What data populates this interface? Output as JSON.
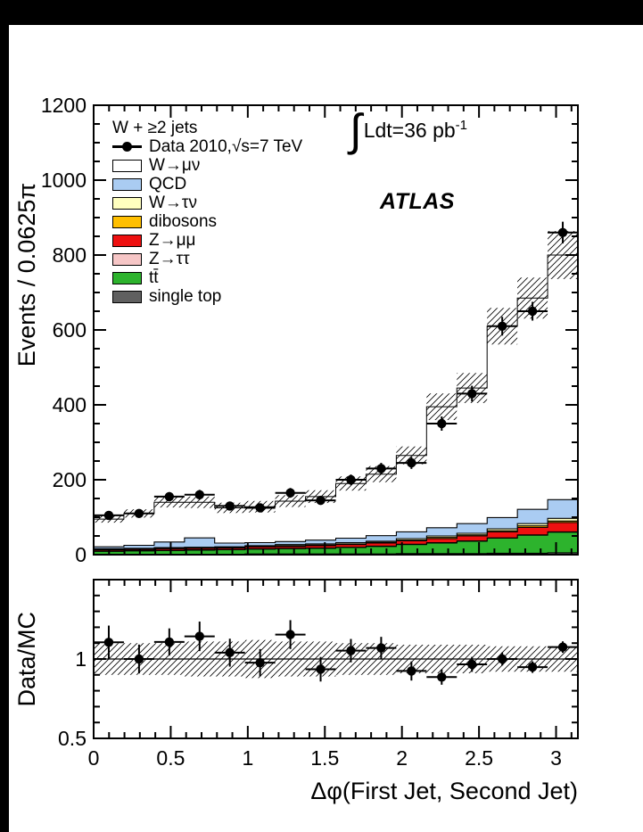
{
  "annotations": {
    "lumi_integral": "∫",
    "lumi_text": "Ldt=36 pb",
    "lumi_exponent": "-1",
    "experiment": "ATLAS"
  },
  "chart_data": {
    "type": "bar",
    "subtype": "stacked-histogram-with-data-points-and-ratio-panel",
    "title": "",
    "xlabel": "Δφ(First Jet, Second Jet)",
    "ylabel_main": "Events / 0.0625π",
    "ylabel_ratio": "Data/MC",
    "xlim": [
      0,
      3.14159265
    ],
    "ylim_main": [
      0,
      1200
    ],
    "ylim_ratio": [
      0.5,
      1.5
    ],
    "n_bins": 16,
    "x_major_ticks": [
      0,
      0.5,
      1,
      1.5,
      2,
      2.5,
      3
    ],
    "x_major_labels": [
      "0",
      "0.5",
      "1",
      "1.5",
      "2",
      "2.5",
      "3"
    ],
    "x_minor_step": 0.1,
    "y_main_major_ticks": [
      0,
      200,
      400,
      600,
      800,
      1000,
      1200
    ],
    "y_main_minor_step": 50,
    "y_ratio_major_ticks": [
      0.5,
      1,
      1.5
    ],
    "y_ratio_major_labels": [
      "0.5",
      "1",
      ""
    ],
    "y_ratio_minor_step": 0.1,
    "legend": {
      "header": "W + ≥2 jets",
      "entries": [
        {
          "label": "Data 2010,√s=7 TeV",
          "swatch": "marker",
          "color": "#000000"
        },
        {
          "label": "W→μν",
          "swatch": "box",
          "color": "#ffffff"
        },
        {
          "label": "QCD",
          "swatch": "box",
          "color": "#aaccf2"
        },
        {
          "label": "W→τν",
          "swatch": "box",
          "color": "#ffffbf"
        },
        {
          "label": "dibosons",
          "swatch": "box",
          "color": "#ffbf00"
        },
        {
          "label": "Z→μμ",
          "swatch": "box",
          "color": "#ee1010"
        },
        {
          "label": "Z→ττ",
          "swatch": "box",
          "color": "#f6c6c6"
        },
        {
          "label": "tt̄",
          "swatch": "box",
          "color": "#2db32d"
        },
        {
          "label": "single top",
          "swatch": "box",
          "color": "#606060"
        }
      ]
    },
    "data": {
      "label": "Data 2010,√s=7 TeV",
      "marker_color": "#000000",
      "values": [
        105,
        110,
        155,
        160,
        130,
        125,
        165,
        145,
        200,
        230,
        245,
        350,
        430,
        610,
        650,
        860
      ],
      "errors": [
        10,
        10,
        12,
        13,
        11,
        11,
        13,
        12,
        14,
        15,
        16,
        19,
        21,
        25,
        25,
        29
      ]
    },
    "mc_stack": [
      {
        "name": "single top",
        "color": "#606060",
        "values": [
          1,
          1,
          1,
          1,
          1,
          2,
          2,
          2,
          2,
          2,
          3,
          3,
          3,
          4,
          4,
          5
        ]
      },
      {
        "name": "tt̄",
        "color": "#2db32d",
        "values": [
          8,
          9,
          10,
          11,
          12,
          13,
          14,
          15,
          17,
          20,
          24,
          28,
          33,
          40,
          48,
          55
        ]
      },
      {
        "name": "Z→ττ",
        "color": "#f6c6c6",
        "values": [
          1,
          1,
          1,
          1,
          1,
          1,
          1,
          1,
          1,
          1,
          1,
          1,
          1,
          1,
          1,
          1
        ]
      },
      {
        "name": "Z→μμ",
        "color": "#ee1010",
        "values": [
          3,
          3,
          4,
          4,
          4,
          5,
          5,
          6,
          7,
          8,
          9,
          11,
          13,
          16,
          20,
          25
        ]
      },
      {
        "name": "dibosons",
        "color": "#ffbf00",
        "values": [
          1,
          1,
          1,
          1,
          1,
          1,
          2,
          2,
          2,
          2,
          2,
          3,
          3,
          3,
          4,
          4
        ]
      },
      {
        "name": "W→τν",
        "color": "#ffffbf",
        "values": [
          2,
          2,
          2,
          2,
          2,
          2,
          3,
          3,
          3,
          3,
          4,
          4,
          4,
          5,
          6,
          7
        ]
      },
      {
        "name": "QCD",
        "color": "#aaccf2",
        "values": [
          5,
          8,
          15,
          25,
          10,
          8,
          8,
          10,
          12,
          15,
          18,
          22,
          26,
          30,
          38,
          50
        ]
      },
      {
        "name": "W→μν",
        "color": "#ffffff",
        "values": [
          74,
          85,
          106,
          95,
          94,
          96,
          108,
          116,
          146,
          164,
          204,
          323,
          362,
          511,
          564,
          653
        ]
      }
    ],
    "mc_frac_uncertainty": [
      0.1,
      0.1,
      0.1,
      0.11,
      0.11,
      0.12,
      0.11,
      0.11,
      0.1,
      0.1,
      0.09,
      0.09,
      0.09,
      0.08,
      0.08,
      0.08
    ],
    "ratio_reference_line": 1.0,
    "grid": false,
    "legend_position": "top-left-inside"
  }
}
